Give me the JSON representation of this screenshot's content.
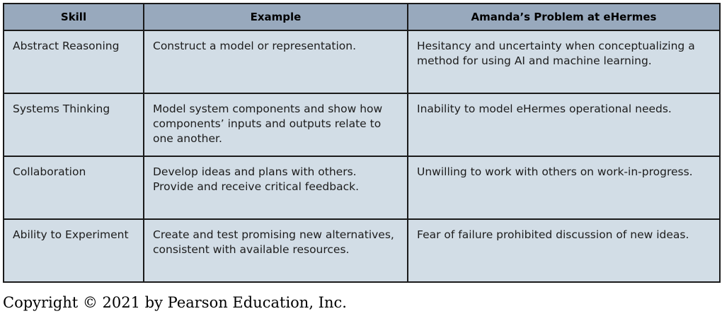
{
  "table": {
    "headers": [
      "Skill",
      "Example",
      "Amanda’s Problem at eHermes"
    ],
    "rows": [
      {
        "skill": "Abstract Reasoning",
        "example": "Construct a model or representation.",
        "problem": "Hesitancy and uncertainty when conceptualizing a method for using AI and machine learning."
      },
      {
        "skill": "Systems Thinking",
        "example": "Model system components and show how components’ inputs and outputs relate to one another.",
        "problem": "Inability to model eHermes operational needs."
      },
      {
        "skill": "Collaboration",
        "example": "Develop ideas and plans with others. Provide and receive critical feedback.",
        "problem": "Unwilling to work with others on work-in-progress."
      },
      {
        "skill": "Ability to Experiment",
        "example": "Create and test promising new alternatives, consistent with available resources.",
        "problem": "Fear of failure prohibited discussion of new ideas."
      }
    ]
  },
  "footer": {
    "copyright": "Copyright © 2021 by Pearson Education, Inc."
  },
  "colors": {
    "header_bg": "#98a9bd",
    "cell_bg": "#d2dde6",
    "border": "#1a1a1a"
  }
}
